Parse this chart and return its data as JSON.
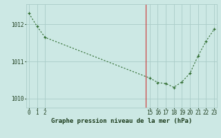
{
  "x": [
    0,
    1,
    2,
    15,
    16,
    17,
    18,
    19,
    20,
    21,
    22,
    23
  ],
  "y": [
    1012.3,
    1011.95,
    1011.65,
    1010.55,
    1010.43,
    1010.4,
    1010.3,
    1010.45,
    1010.68,
    1011.15,
    1011.55,
    1011.87
  ],
  "line_color": "#2d6a2d",
  "marker_color": "#2d6a2d",
  "bg_color": "#cce8e4",
  "grid_color": "#aaccc8",
  "text_color": "#1a3a1a",
  "xlabel": "Graphe pression niveau de la mer (hPa)",
  "xtick_labels": [
    "0",
    "1",
    "2",
    "15",
    "16",
    "17",
    "18",
    "19",
    "20",
    "21",
    "22",
    "23"
  ],
  "xtick_positions": [
    0,
    1,
    2,
    15,
    16,
    17,
    18,
    19,
    20,
    21,
    22,
    23
  ],
  "ytick_positions": [
    1010.0,
    1011.0,
    1012.0
  ],
  "ytick_labels": [
    "1010",
    "1011",
    "1012"
  ],
  "ylim": [
    1009.75,
    1012.55
  ],
  "xlim": [
    -0.3,
    23.3
  ],
  "tick_fontsize": 5.5,
  "xlabel_fontsize": 6.5,
  "red_vline_x": 14.5
}
